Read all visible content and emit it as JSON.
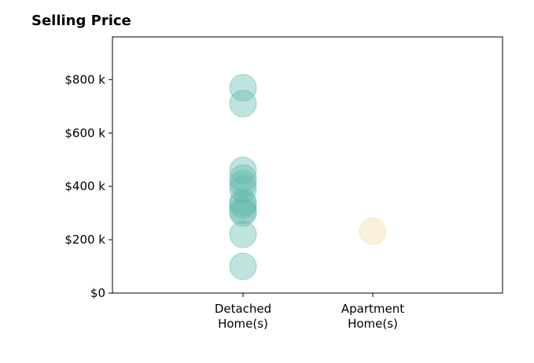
{
  "chart_data": {
    "type": "scatter",
    "title": "Selling Price",
    "xlabel": "",
    "ylabel": "",
    "categories": [
      [
        "Detached",
        "Home(s)"
      ],
      [
        "Apartment",
        "Home(s)"
      ]
    ],
    "ylim": [
      0,
      960000
    ],
    "yticks": [
      0,
      200000,
      400000,
      600000,
      800000
    ],
    "ytick_labels": [
      "$0",
      "$200 k",
      "$400 k",
      "$600 k",
      "$800 k"
    ],
    "grid": false,
    "series": [
      {
        "category_index": 0,
        "color": "#5fb8aa",
        "values": [
          100000,
          220000,
          300000,
          310000,
          330000,
          340000,
          390000,
          410000,
          430000,
          460000,
          710000,
          770000
        ]
      },
      {
        "category_index": 1,
        "color": "#f3d9a4",
        "values": [
          232000
        ]
      }
    ]
  }
}
